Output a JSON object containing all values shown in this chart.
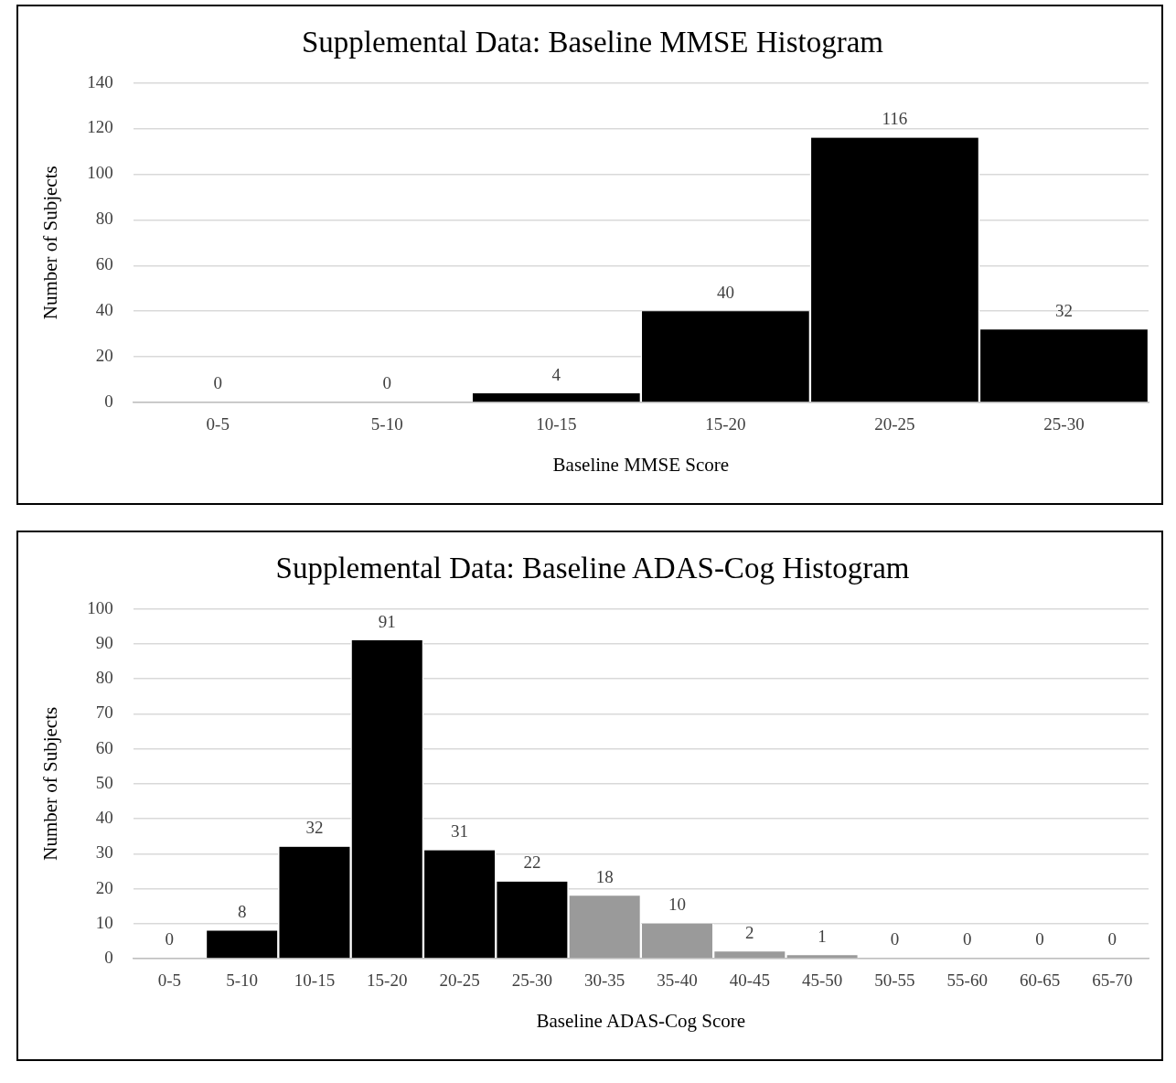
{
  "chart_data": [
    {
      "type": "bar",
      "title": "Supplemental Data: Baseline MMSE Histogram",
      "xlabel": "Baseline MMSE Score",
      "ylabel": "Number of Subjects",
      "categories": [
        "0-5",
        "5-10",
        "10-15",
        "15-20",
        "20-25",
        "25-30"
      ],
      "values": [
        0,
        0,
        4,
        40,
        116,
        32
      ],
      "color": "#000000",
      "ylim": [
        0,
        140
      ],
      "yticks": [
        0,
        20,
        40,
        60,
        80,
        100,
        120,
        140
      ],
      "grid": "y",
      "data_labels": true,
      "legend": false
    },
    {
      "type": "bar",
      "title": "Supplemental Data: Baseline ADAS-Cog Histogram",
      "xlabel": "Baseline ADAS-Cog Score",
      "ylabel": "Number of Subjects",
      "categories": [
        "0-5",
        "5-10",
        "10-15",
        "15-20",
        "20-25",
        "25-30",
        "30-35",
        "35-40",
        "40-45",
        "45-50",
        "50-55",
        "55-60",
        "60-65",
        "65-70"
      ],
      "values": [
        0,
        8,
        32,
        91,
        31,
        22,
        18,
        10,
        2,
        1,
        0,
        0,
        0,
        0
      ],
      "colors": [
        "#000000",
        "#000000",
        "#000000",
        "#000000",
        "#000000",
        "#000000",
        "#9a9a9a",
        "#9a9a9a",
        "#9a9a9a",
        "#9a9a9a",
        "#9a9a9a",
        "#9a9a9a",
        "#9a9a9a",
        "#9a9a9a"
      ],
      "ylim": [
        0,
        100
      ],
      "yticks": [
        0,
        10,
        20,
        30,
        40,
        50,
        60,
        70,
        80,
        90,
        100
      ],
      "grid": "y",
      "data_labels": true,
      "legend": false
    }
  ]
}
